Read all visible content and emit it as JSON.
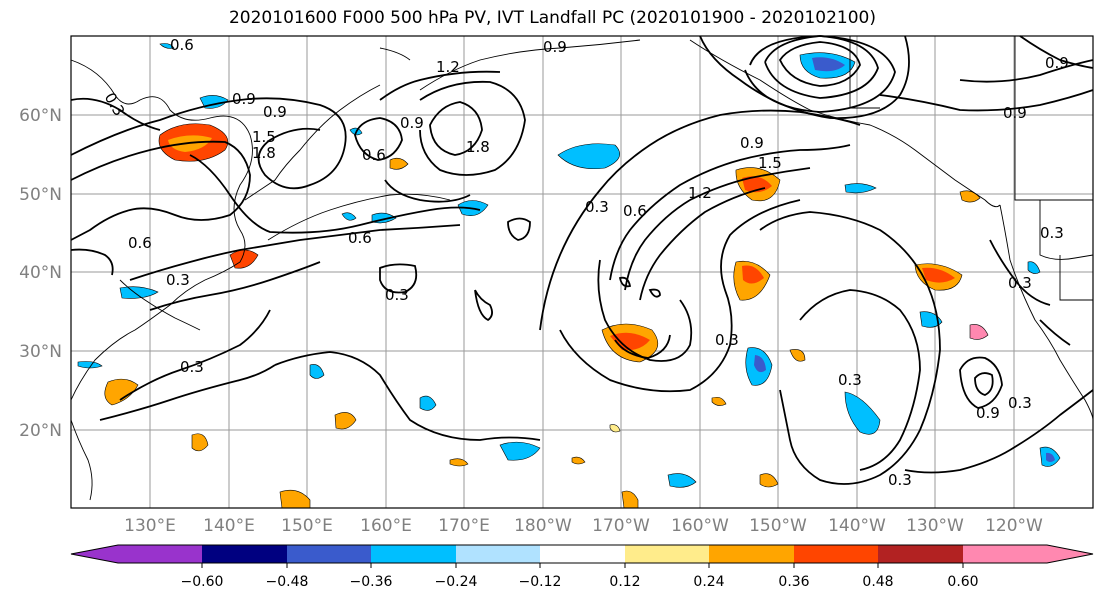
{
  "title": "2020101600 F000 500 hPa PV, IVT Landfall PC (2020101900 - 2020102100)",
  "map": {
    "lon_labels": [
      "130°E",
      "140°E",
      "150°E",
      "160°E",
      "170°E",
      "180°W",
      "170°W",
      "160°W",
      "150°W",
      "140°W",
      "130°W",
      "120°W"
    ],
    "lat_labels": [
      "60°N",
      "50°N",
      "40°N",
      "30°N",
      "20°N"
    ],
    "contour_labels": [
      "0.6",
      "0.9",
      "0.3",
      "0.9",
      "1.5",
      "1.8",
      "0.6",
      "0.9",
      "1.2",
      "1.8",
      "0.9",
      "0.9",
      "0.9",
      "0.6",
      "0.3",
      "0.6",
      "1.2",
      "0.9",
      "0.3",
      "0.6",
      "1.5",
      "0.3",
      "0.3",
      "0.3",
      "0.3",
      "0.9",
      "0.3",
      "0.3",
      "0.3",
      "0.3"
    ]
  },
  "colorbar": {
    "colors": [
      "#9933cc",
      "#000080",
      "#3a5bcc",
      "#00bfff",
      "#b0e2ff",
      "#ffffff",
      "#ffec8b",
      "#ffa500",
      "#ff4500",
      "#b22222",
      "#ff88b0"
    ],
    "ticks": [
      "−0.60",
      "−0.48",
      "−0.36",
      "−0.24",
      "−0.12",
      "0.12",
      "0.24",
      "0.36",
      "0.48",
      "0.60"
    ]
  }
}
